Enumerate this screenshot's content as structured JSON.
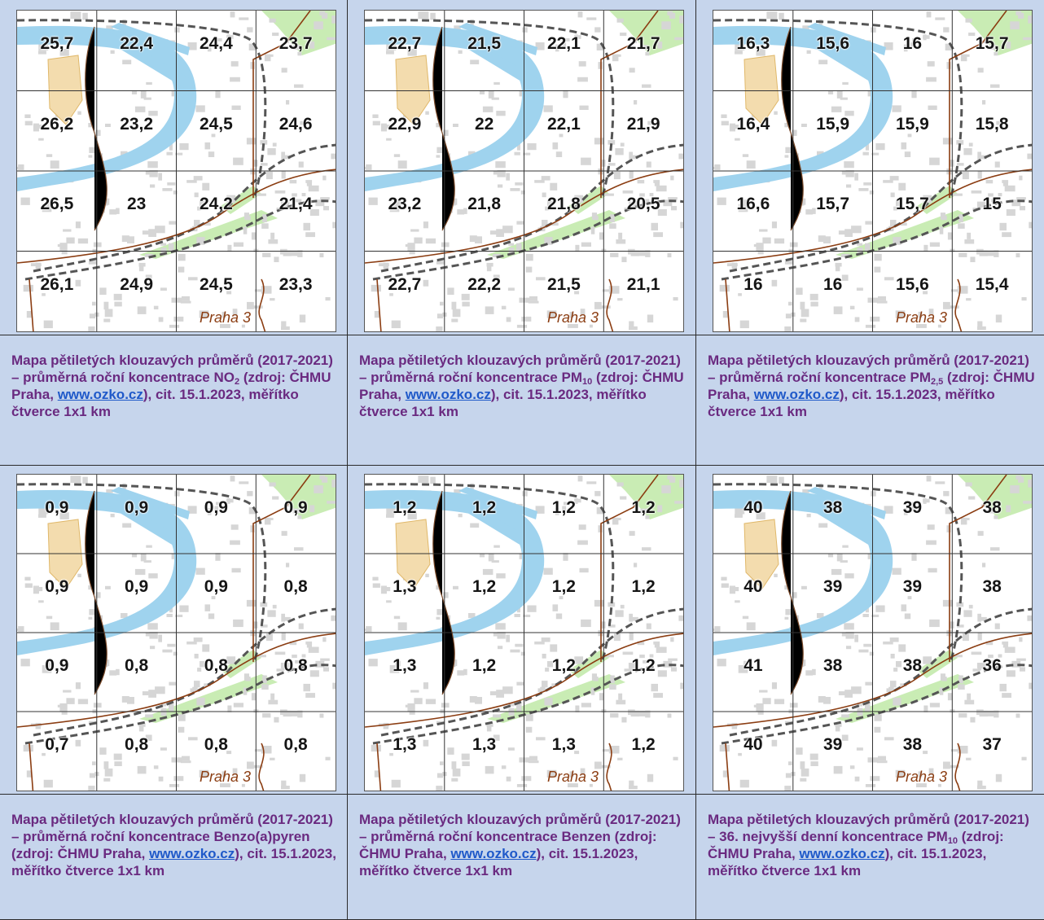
{
  "place_label": "Praha 3",
  "colors": {
    "cell_bg": "#c6d5ec",
    "caption_text": "#6a2a80",
    "link": "#1f59c9",
    "river": "#9fd3ee",
    "road": "#8b3d12",
    "park": "#c9ecb4"
  },
  "maps": [
    {
      "values": [
        "25,7",
        "22,4",
        "24,4",
        "23,7",
        "26,2",
        "23,2",
        "24,5",
        "24,6",
        "26,5",
        "23",
        "24,2",
        "21,4",
        "26,1",
        "24,9",
        "24,5",
        "23,3"
      ],
      "caption": {
        "before": "Mapa pětiletých klouzavých průměrů (2017-2021) – průměrná roční koncentrace NO",
        "sub": "2",
        "after_sub": " (zdroj: ČHMU Praha, ",
        "link": "www.ozko.cz",
        "after_link": "), cit. 15.1.2023, měřítko čtverce 1x1 km"
      }
    },
    {
      "values": [
        "22,7",
        "21,5",
        "22,1",
        "21,7",
        "22,9",
        "22",
        "22,1",
        "21,9",
        "23,2",
        "21,8",
        "21,8",
        "20,5",
        "22,7",
        "22,2",
        "21,5",
        "21,1"
      ],
      "caption": {
        "before": "Mapa pětiletých klouzavých průměrů (2017-2021) – průměrná roční koncentrace PM",
        "sub": "10",
        "after_sub": " (zdroj: ČHMU Praha, ",
        "link": "www.ozko.cz",
        "after_link": "), cit. 15.1.2023, měřítko čtverce 1x1 km"
      }
    },
    {
      "values": [
        "16,3",
        "15,6",
        "16",
        "15,7",
        "16,4",
        "15,9",
        "15,9",
        "15,8",
        "16,6",
        "15,7",
        "15,7",
        "15",
        "16",
        "16",
        "15,6",
        "15,4"
      ],
      "caption": {
        "before": "Mapa pětiletých klouzavých průměrů (2017-2021) – průměrná roční koncentrace PM",
        "sub": "2,5",
        "after_sub": " (zdroj: ČHMU Praha, ",
        "link": "www.ozko.cz",
        "after_link": "), cit. 15.1.2023, měřítko čtverce 1x1 km"
      }
    },
    {
      "values": [
        "0,9",
        "0,9",
        "0,9",
        "0,9",
        "0,9",
        "0,9",
        "0,9",
        "0,8",
        "0,9",
        "0,8",
        "0,8",
        "0,8",
        "0,7",
        "0,8",
        "0,8",
        "0,8"
      ],
      "caption": {
        "before": "Mapa pětiletých klouzavých průměrů (2017-2021) – průměrná roční koncentrace Benzo(a)pyren (zdroj: ČHMU Praha, ",
        "sub": "",
        "after_sub": "",
        "link": "www.ozko.cz",
        "after_link": "), cit. 15.1.2023, měřítko čtverce 1x1 km"
      }
    },
    {
      "values": [
        "1,2",
        "1,2",
        "1,2",
        "1,2",
        "1,3",
        "1,2",
        "1,2",
        "1,2",
        "1,3",
        "1,2",
        "1,2",
        "1,2",
        "1,3",
        "1,3",
        "1,3",
        "1,2"
      ],
      "caption": {
        "before": "Mapa pětiletých klouzavých průměrů (2017-2021) – průměrná roční koncentrace Benzen (zdroj: ČHMU Praha, ",
        "sub": "",
        "after_sub": "",
        "link": "www.ozko.cz",
        "after_link": "), cit. 15.1.2023, měřítko čtverce 1x1 km"
      }
    },
    {
      "values": [
        "40",
        "38",
        "39",
        "38",
        "40",
        "39",
        "39",
        "38",
        "41",
        "38",
        "38",
        "36",
        "40",
        "39",
        "38",
        "37"
      ],
      "caption": {
        "before": "Mapa pětiletých klouzavých průměrů (2017-2021) – 36. nejvyšší denní koncentrace PM",
        "sub": "10",
        "after_sub": " (zdroj: ČHMU Praha, ",
        "link": "www.ozko.cz",
        "after_link": "), cit. 15.1.2023, měřítko čtverce 1x1 km"
      }
    }
  ]
}
